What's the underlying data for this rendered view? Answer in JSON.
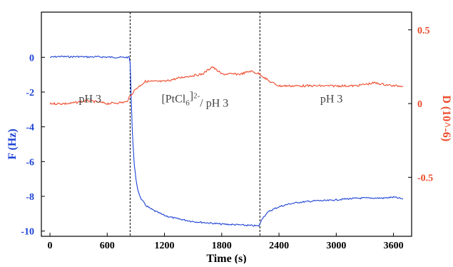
{
  "colors": {
    "frequency": "#1f44d6",
    "dissipation": "#ee4b2b",
    "axis": "#000000",
    "label_text": "#444444"
  },
  "chart_data": {
    "type": "line",
    "xlabel": "Time (s)",
    "ylabel": "F (Hz)",
    "y2label": "D (10^-6)",
    "xlim": [
      -90,
      3790
    ],
    "ylim": [
      -10.3,
      2.6
    ],
    "y2lim": [
      -0.9,
      0.62
    ],
    "x_ticks": [
      0,
      600,
      1200,
      1800,
      2400,
      3000,
      3600
    ],
    "x_tick_labels": [
      "0",
      "600",
      "1200",
      "1800",
      "2400",
      "3000",
      "3600"
    ],
    "y_ticks": [
      0,
      -2,
      -4,
      -6,
      -8,
      -10
    ],
    "y_tick_labels": [
      "0",
      "-2",
      "-4",
      "-6",
      "-8",
      "-10"
    ],
    "y2_ticks": [
      0.5,
      0,
      -0.5
    ],
    "y2_tick_labels": [
      "0.5",
      "0",
      "-0.5"
    ],
    "grid": false,
    "vlines": [
      840,
      2200
    ],
    "region_labels": [
      {
        "parts": [
          "pH 3"
        ],
        "x": 420,
        "y": -2.6
      },
      {
        "parts": [
          "[PtCl",
          "6",
          "]",
          "2-",
          "/ pH 3"
        ],
        "x": 1520,
        "y": -2.6
      },
      {
        "parts": [
          "pH 3"
        ],
        "x": 2950,
        "y": -2.6
      }
    ],
    "series": [
      {
        "axis": "left",
        "color": "#1f44d6",
        "x": [
          0,
          100,
          200,
          300,
          400,
          500,
          600,
          700,
          800,
          830,
          840,
          850,
          860,
          870,
          880,
          890,
          900,
          920,
          950,
          1000,
          1050,
          1100,
          1200,
          1300,
          1400,
          1500,
          1600,
          1700,
          1800,
          1900,
          2000,
          2100,
          2190,
          2200,
          2220,
          2260,
          2300,
          2400,
          2500,
          2600,
          2700,
          2800,
          2900,
          3000,
          3100,
          3200,
          3300,
          3400,
          3500,
          3600,
          3700
        ],
        "y": [
          0.0,
          0.05,
          0.03,
          0.04,
          0.02,
          0.03,
          0.01,
          0.0,
          0.0,
          0.0,
          -0.3,
          -2.0,
          -3.8,
          -5.0,
          -5.9,
          -6.5,
          -7.0,
          -7.6,
          -8.1,
          -8.5,
          -8.7,
          -8.85,
          -9.1,
          -9.25,
          -9.35,
          -9.45,
          -9.5,
          -9.55,
          -9.6,
          -9.62,
          -9.65,
          -9.68,
          -9.7,
          -9.6,
          -9.3,
          -9.05,
          -8.85,
          -8.6,
          -8.45,
          -8.35,
          -8.3,
          -8.25,
          -8.25,
          -8.2,
          -8.15,
          -8.12,
          -8.1,
          -8.1,
          -8.1,
          -8.05,
          -8.15
        ]
      },
      {
        "axis": "right",
        "color": "#ee4b2b",
        "x": [
          0,
          200,
          400,
          600,
          800,
          840,
          900,
          1000,
          1200,
          1400,
          1600,
          1700,
          1800,
          2000,
          2100,
          2200,
          2300,
          2400,
          2600,
          2800,
          3000,
          3200,
          3400,
          3600,
          3700
        ],
        "y": [
          0.0,
          0.0,
          0.02,
          0.0,
          0.01,
          0.05,
          0.1,
          0.15,
          0.15,
          0.18,
          0.2,
          0.25,
          0.2,
          0.2,
          0.22,
          0.2,
          0.15,
          0.12,
          0.12,
          0.12,
          0.12,
          0.12,
          0.14,
          0.12,
          0.12
        ]
      }
    ]
  }
}
